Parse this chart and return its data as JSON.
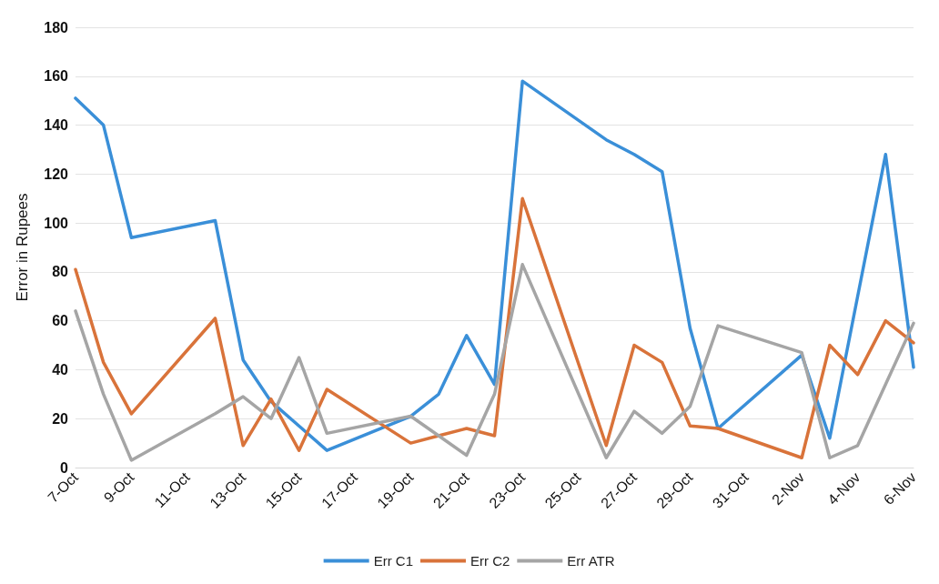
{
  "chart_data": {
    "type": "line",
    "ylabel": "Error in Rupees",
    "x": [
      "--10-07",
      "--10-08",
      "--10-09",
      "--10-12",
      "--10-13",
      "--10-14",
      "--10-15",
      "--10-16",
      "--10-19",
      "--10-20",
      "--10-21",
      "--10-22",
      "--10-23",
      "--10-26",
      "--10-27",
      "--10-28",
      "--10-29",
      "--10-30",
      "--11-02",
      "--11-03",
      "--11-04",
      "--11-05",
      "--11-06"
    ],
    "series": [
      {
        "name": "Err C1",
        "color": "#3a8fd8",
        "values": [
          151,
          140,
          94,
          101,
          44,
          27,
          17,
          7,
          21,
          30,
          54,
          34,
          158,
          134,
          128,
          121,
          57,
          16,
          46,
          12,
          70,
          128,
          41
        ]
      },
      {
        "name": "Err C2",
        "color": "#d9733a",
        "values": [
          81,
          43,
          22,
          61,
          9,
          28,
          7,
          32,
          10,
          13,
          16,
          13,
          110,
          9,
          50,
          43,
          17,
          16,
          4,
          50,
          38,
          60,
          51
        ]
      },
      {
        "name": "Err ATR",
        "color": "#a5a5a5",
        "values": [
          64,
          30,
          3,
          22,
          29,
          20,
          45,
          14,
          21,
          13,
          5,
          30,
          83,
          4,
          23,
          14,
          25,
          58,
          47,
          4,
          9,
          34,
          59
        ]
      }
    ],
    "xlim": [
      "--10-07",
      "--11-06"
    ],
    "xticks": [
      {
        "value": "--10-07",
        "label": "7-Oct"
      },
      {
        "value": "--10-09",
        "label": "9-Oct"
      },
      {
        "value": "--10-11",
        "label": "11-Oct"
      },
      {
        "value": "--10-13",
        "label": "13-Oct"
      },
      {
        "value": "--10-15",
        "label": "15-Oct"
      },
      {
        "value": "--10-17",
        "label": "17-Oct"
      },
      {
        "value": "--10-19",
        "label": "19-Oct"
      },
      {
        "value": "--10-21",
        "label": "21-Oct"
      },
      {
        "value": "--10-23",
        "label": "23-Oct"
      },
      {
        "value": "--10-25",
        "label": "25-Oct"
      },
      {
        "value": "--10-27",
        "label": "27-Oct"
      },
      {
        "value": "--10-29",
        "label": "29-Oct"
      },
      {
        "value": "--10-31",
        "label": "31-Oct"
      },
      {
        "value": "--11-02",
        "label": "2-Nov"
      },
      {
        "value": "--11-04",
        "label": "4-Nov"
      },
      {
        "value": "--11-06",
        "label": "6-Nov"
      }
    ],
    "ylim": [
      0,
      180
    ],
    "yticks": [
      0,
      20,
      40,
      60,
      80,
      100,
      120,
      140,
      160,
      180
    ],
    "grid": "y",
    "legend": "bottom",
    "marker": "none",
    "line_style": "solid"
  }
}
